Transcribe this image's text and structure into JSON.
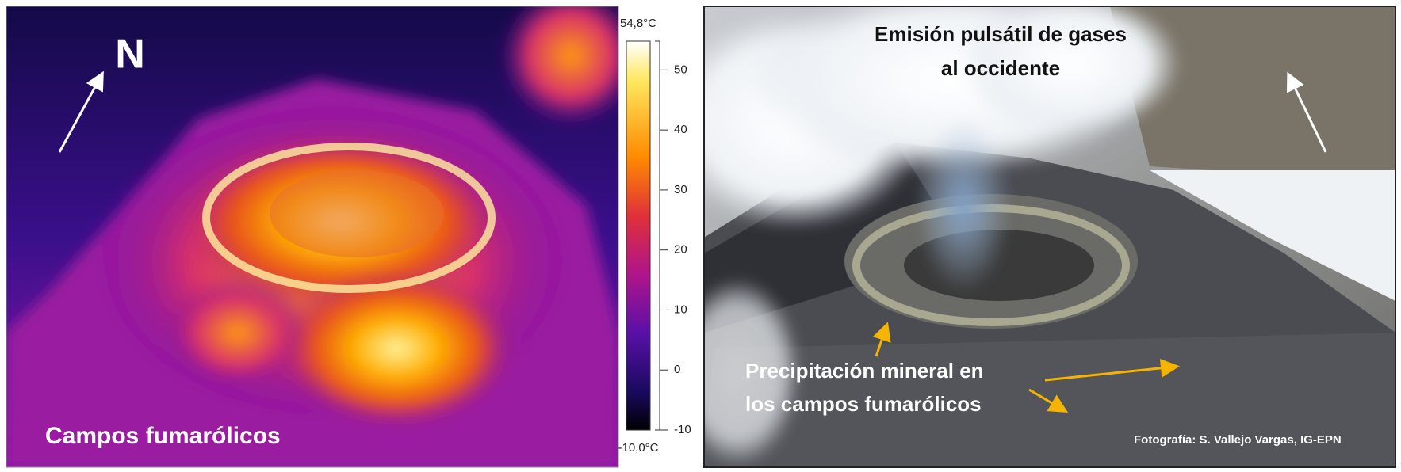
{
  "thermal_panel": {
    "north_label": "N",
    "caption": "Campos fumarólicos"
  },
  "colorbar": {
    "max": {
      "value": 54.8,
      "label": "54,8°C"
    },
    "min": {
      "value": -10,
      "label": "-10,0°C"
    },
    "ticks": [
      50,
      40,
      30,
      20,
      10,
      0,
      -10
    ]
  },
  "photo_panel": {
    "title_lines": [
      "Emisión pulsátil de gases",
      "al occidente"
    ],
    "annotation_lines": [
      "Precipitación mineral en",
      "los campos fumarólicos"
    ],
    "credit": "Fotografía: S. Vallejo Vargas, IG-EPN"
  }
}
